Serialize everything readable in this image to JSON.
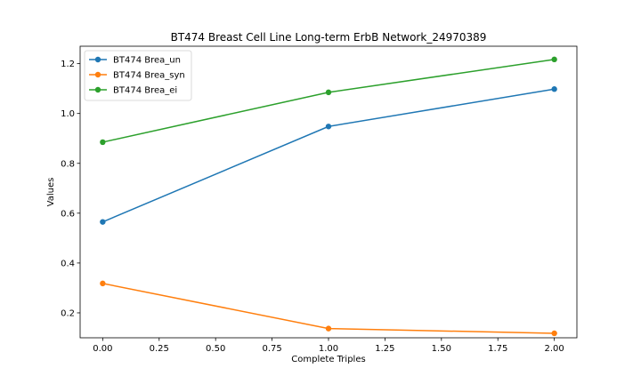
{
  "chart_data": {
    "type": "line",
    "title": "BT474 Breast Cell Line Long-term ErbB Network_24970389",
    "xlabel": "Complete Triples",
    "ylabel": "Values",
    "x": [
      0,
      1,
      2
    ],
    "xlim": [
      -0.1,
      2.1
    ],
    "ylim": [
      0.1,
      1.27
    ],
    "xticks": [
      0.0,
      0.25,
      0.5,
      0.75,
      1.0,
      1.25,
      1.5,
      1.75,
      2.0
    ],
    "xtick_labels": [
      "0.00",
      "0.25",
      "0.50",
      "0.75",
      "1.00",
      "1.25",
      "1.50",
      "1.75",
      "2.00"
    ],
    "yticks": [
      0.2,
      0.4,
      0.6,
      0.8,
      1.0,
      1.2
    ],
    "ytick_labels": [
      "0.2",
      "0.4",
      "0.6",
      "0.8",
      "1.0",
      "1.2"
    ],
    "grid": false,
    "legend_position": "top-left",
    "series": [
      {
        "name": "BT474 Brea_un",
        "color": "#1f77b4",
        "values": [
          0.565,
          0.948,
          1.098
        ]
      },
      {
        "name": "BT474 Brea_syn",
        "color": "#ff7f0e",
        "values": [
          0.318,
          0.137,
          0.118
        ]
      },
      {
        "name": "BT474 Brea_ei",
        "color": "#2ca02c",
        "values": [
          0.885,
          1.085,
          1.217
        ]
      }
    ]
  }
}
